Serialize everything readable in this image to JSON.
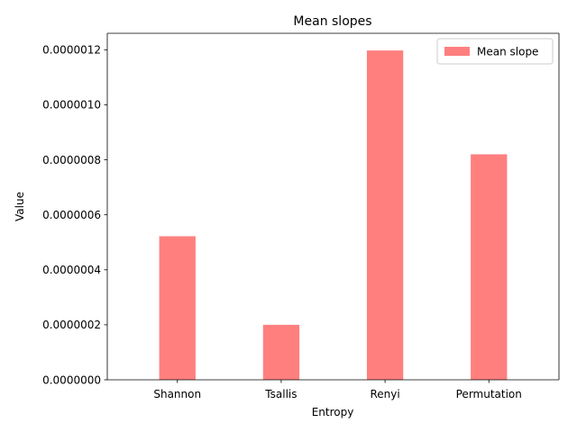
{
  "chart_data": {
    "type": "bar",
    "title": "Mean slopes",
    "xlabel": "Entropy",
    "ylabel": "Value",
    "categories": [
      "Shannon",
      "Tsallis",
      "Renyi",
      "Permutation"
    ],
    "series": [
      {
        "name": "Mean slope",
        "values": [
          5.22e-07,
          2e-07,
          1.1975e-06,
          8.2e-07
        ],
        "color": "#ff7f7f"
      }
    ],
    "ylim": [
      0,
      1.26e-06
    ],
    "yticks": [
      0,
      2e-07,
      4e-07,
      6e-07,
      8e-07,
      1e-06,
      1.2e-06
    ],
    "ytick_labels": [
      "0.0000000",
      "0.0000002",
      "0.0000004",
      "0.0000006",
      "0.0000008",
      "0.0000010",
      "0.0000012"
    ],
    "grid": false,
    "legend": "top-right"
  }
}
